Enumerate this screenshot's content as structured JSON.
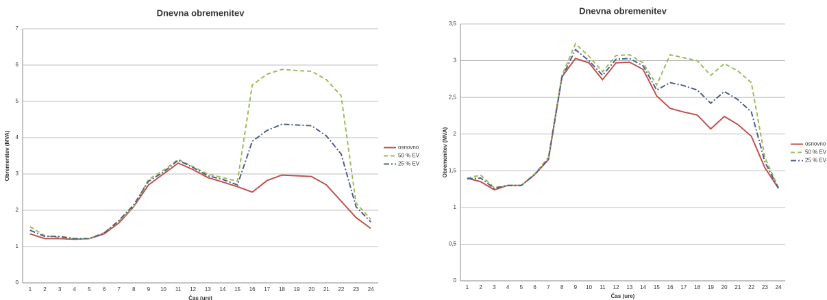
{
  "chart_data": [
    {
      "type": "line",
      "title": "Dnevna obremenitev",
      "x_label": "Čas (ure)",
      "y_label": "Obremenitev (MVA)",
      "categories": [
        "1",
        "2",
        "3",
        "4",
        "5",
        "6",
        "7",
        "8",
        "9",
        "10",
        "11",
        "12",
        "13",
        "14",
        "15",
        "16",
        "17",
        "18",
        "19",
        "20",
        "21",
        "22",
        "23",
        "24"
      ],
      "series": [
        {
          "name": "osnovno",
          "color": "#c0504d",
          "dash": "solid",
          "values": [
            1.35,
            1.22,
            1.22,
            1.2,
            1.22,
            1.35,
            1.65,
            2.1,
            2.7,
            3.0,
            3.3,
            3.12,
            2.9,
            2.78,
            2.65,
            2.5,
            2.82,
            2.97,
            2.95,
            2.93,
            2.7,
            2.25,
            1.8,
            1.5
          ]
        },
        {
          "name": "50 % EV",
          "color": "#9bbb59",
          "dash": "dashed",
          "values": [
            1.55,
            1.3,
            1.25,
            1.22,
            1.22,
            1.38,
            1.7,
            2.1,
            2.85,
            3.1,
            3.4,
            3.2,
            3.0,
            2.9,
            2.8,
            5.45,
            5.75,
            5.88,
            5.85,
            5.83,
            5.6,
            5.15,
            2.2,
            1.75
          ]
        },
        {
          "name": "25 % EV",
          "color": "#4f5d8a",
          "dash": "dashdot",
          "values": [
            1.45,
            1.28,
            1.28,
            1.22,
            1.22,
            1.37,
            1.72,
            2.15,
            2.8,
            3.05,
            3.38,
            3.18,
            2.95,
            2.85,
            2.7,
            3.9,
            4.2,
            4.37,
            4.35,
            4.33,
            4.05,
            3.55,
            2.1,
            1.68
          ]
        }
      ],
      "ylim": [
        0,
        7
      ],
      "yticks": [
        0,
        1,
        2,
        3,
        4,
        5,
        6,
        7
      ],
      "grid": true,
      "legend": "right"
    },
    {
      "type": "line",
      "title": "Dnevna obremenitev",
      "x_label": "Čas (ure)",
      "y_label": "Obremenitev (MVA)",
      "categories": [
        "1",
        "2",
        "3",
        "4",
        "5",
        "6",
        "7",
        "8",
        "9",
        "10",
        "11",
        "12",
        "13",
        "14",
        "15",
        "16",
        "17",
        "18",
        "19",
        "20",
        "21",
        "22",
        "23",
        "24"
      ],
      "series": [
        {
          "name": "osnovno",
          "color": "#c0504d",
          "dash": "solid",
          "values": [
            1.4,
            1.35,
            1.24,
            1.3,
            1.3,
            1.45,
            1.65,
            2.78,
            3.03,
            2.97,
            2.74,
            2.97,
            2.98,
            2.88,
            2.52,
            2.35,
            2.3,
            2.26,
            2.07,
            2.24,
            2.13,
            1.97,
            1.54,
            1.26
          ]
        },
        {
          "name": "50 % EV",
          "color": "#9bbb59",
          "dash": "dashed",
          "values": [
            1.4,
            1.44,
            1.27,
            1.3,
            1.3,
            1.46,
            1.68,
            2.8,
            3.23,
            3.06,
            2.85,
            3.07,
            3.08,
            2.97,
            2.67,
            3.08,
            3.04,
            3.0,
            2.8,
            2.96,
            2.86,
            2.7,
            1.68,
            1.27
          ]
        },
        {
          "name": "25 % EV",
          "color": "#4f5d8a",
          "dash": "dashdot",
          "values": [
            1.39,
            1.4,
            1.26,
            1.3,
            1.3,
            1.45,
            1.66,
            2.77,
            3.15,
            3.0,
            2.8,
            3.02,
            3.03,
            2.93,
            2.6,
            2.7,
            2.66,
            2.6,
            2.42,
            2.58,
            2.47,
            2.3,
            1.62,
            1.26
          ]
        }
      ],
      "ylim": [
        0,
        3.5
      ],
      "yticks": [
        0,
        {
          "value": 0.5,
          "label": "0,5"
        },
        1,
        {
          "value": 1.5,
          "label": "1,5"
        },
        2,
        {
          "value": 2.5,
          "label": "2,5"
        },
        3,
        {
          "value": 3.5,
          "label": "3,5"
        }
      ],
      "grid": true,
      "legend": "right"
    }
  ]
}
